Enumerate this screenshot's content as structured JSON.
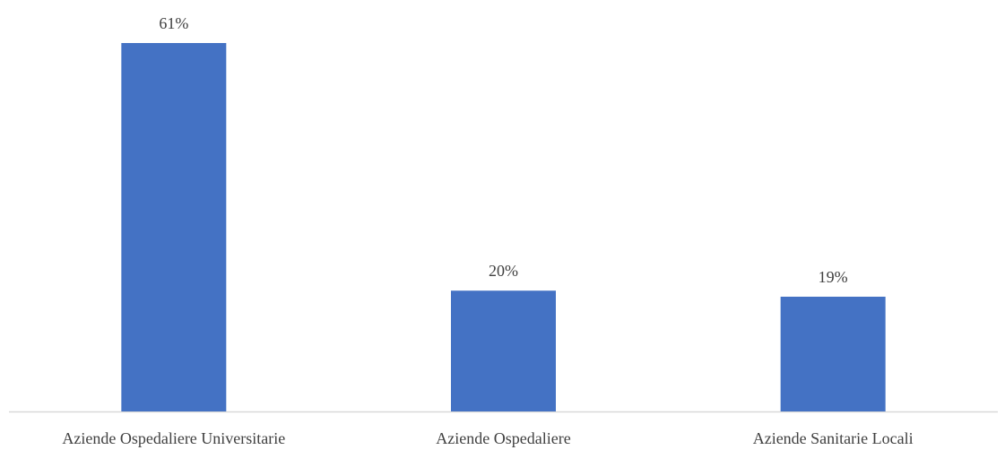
{
  "chart_data": {
    "type": "bar",
    "categories": [
      "Aziende Ospedaliere Universitarie",
      "Aziende Ospedaliere",
      "Aziende Sanitarie Locali"
    ],
    "values": [
      61,
      20,
      19
    ],
    "value_labels": [
      "61%",
      "20%",
      "19%"
    ],
    "unit": "%",
    "ylim": [
      0,
      61
    ],
    "grid": false,
    "legend": "none",
    "bar_color": "#4472C4",
    "axis_color": "#D9D9D9"
  }
}
